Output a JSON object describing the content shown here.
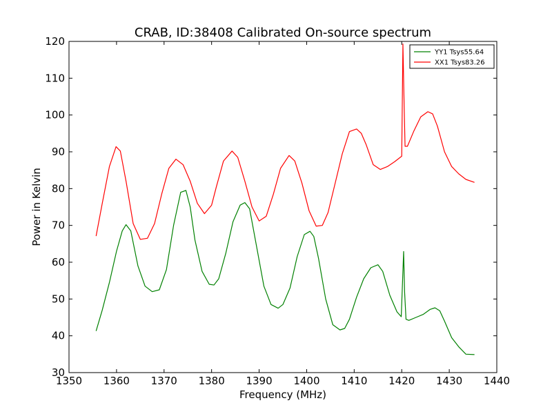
{
  "chart_data": {
    "type": "line",
    "title": "CRAB, ID:38408 Calibrated On-source spectrum",
    "xlabel": "Frequency (MHz)",
    "ylabel": "Power in Kelvin",
    "xlim": [
      1350,
      1440
    ],
    "ylim": [
      30,
      120
    ],
    "xticks": [
      "1350",
      "1360",
      "1370",
      "1380",
      "1390",
      "1400",
      "1410",
      "1420",
      "1430",
      "1440"
    ],
    "yticks": [
      "30",
      "40",
      "50",
      "60",
      "70",
      "80",
      "90",
      "100",
      "110",
      "120"
    ],
    "grid": false,
    "legend_position": "top-right",
    "series": [
      {
        "name": "YY1 Tsys55.64",
        "color": "#008000",
        "x": [
          1355.7,
          1357,
          1358.5,
          1360,
          1361.2,
          1362,
          1363,
          1364.5,
          1366,
          1367.5,
          1369,
          1370.5,
          1372,
          1373.5,
          1374.6,
          1375.5,
          1376.5,
          1378,
          1379.5,
          1380.5,
          1381.5,
          1383,
          1384.5,
          1386,
          1387,
          1388,
          1389.5,
          1391,
          1392.5,
          1394,
          1395,
          1396.5,
          1398,
          1399.5,
          1400.7,
          1401.5,
          1402.5,
          1404,
          1405.5,
          1407,
          1408,
          1409,
          1410.5,
          1412,
          1413.5,
          1415,
          1416,
          1417.5,
          1419,
          1419.9,
          1420.4,
          1420.6,
          1420.9,
          1421.5,
          1423,
          1424.5,
          1426,
          1427,
          1428,
          1429,
          1430.5,
          1432,
          1433.5,
          1435.3
        ],
        "y": [
          41.3,
          47,
          54.5,
          63,
          68.5,
          70.2,
          68.5,
          59,
          53.5,
          52,
          52.5,
          58,
          70,
          79,
          79.5,
          75,
          66,
          57.5,
          54,
          53.8,
          55.5,
          62.5,
          71,
          75.5,
          76.2,
          74.5,
          64,
          53.5,
          48.5,
          47.5,
          48.5,
          53,
          61.5,
          67.5,
          68.4,
          67,
          61,
          50,
          43,
          41.6,
          42,
          44.5,
          50.5,
          55.5,
          58.5,
          59.3,
          57.5,
          51,
          46.5,
          45.2,
          62.9,
          52,
          44.5,
          44.2,
          45,
          45.8,
          47.2,
          47.6,
          46.8,
          44,
          39.5,
          37,
          35,
          34.9
        ]
      },
      {
        "name": "XX1 Tsys83.26",
        "color": "#ff0000",
        "x": [
          1355.7,
          1357,
          1358.5,
          1359.9,
          1360.8,
          1362,
          1363.5,
          1365,
          1366.5,
          1368,
          1369.5,
          1371,
          1372.5,
          1374,
          1375.5,
          1377,
          1378.5,
          1380,
          1381,
          1382.5,
          1384.3,
          1385.5,
          1387,
          1388.5,
          1390,
          1391.5,
          1393,
          1394.5,
          1396.3,
          1397.5,
          1399,
          1400.5,
          1402,
          1403.3,
          1404.5,
          1406,
          1407.5,
          1409,
          1410.5,
          1411.5,
          1412.5,
          1414,
          1415.5,
          1417,
          1418.5,
          1420,
          1420.25,
          1420.5,
          1420.7,
          1421.2,
          1422.5,
          1424,
          1425.5,
          1426.5,
          1427.5,
          1429,
          1430.5,
          1432,
          1433.5,
          1435.3
        ],
        "y": [
          67.1,
          76,
          86,
          91.4,
          90.2,
          82,
          70.5,
          66.2,
          66.5,
          70.5,
          78.5,
          85.5,
          88,
          86.5,
          82,
          76,
          73.2,
          75.5,
          80.5,
          87.5,
          90.2,
          88.5,
          82,
          75,
          71.2,
          72.5,
          78.5,
          85.5,
          89,
          87.5,
          81.5,
          74,
          69.8,
          70,
          73.5,
          81.5,
          89.5,
          95.5,
          96.2,
          95,
          92,
          86.5,
          85.2,
          86,
          87.3,
          88.8,
          119.3,
          103,
          91.5,
          91.5,
          95.5,
          99.5,
          100.9,
          100.3,
          97,
          90,
          86,
          84,
          82.5,
          81.7
        ]
      }
    ]
  }
}
